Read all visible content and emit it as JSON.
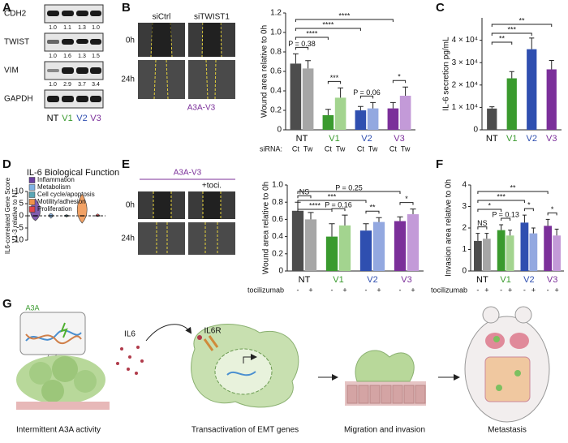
{
  "panel_labels": [
    "A",
    "B",
    "C",
    "D",
    "E",
    "F",
    "G"
  ],
  "blot": {
    "proteins": [
      "CDH2",
      "TWIST",
      "VIM",
      "GAPDH"
    ],
    "quantification": [
      [
        "1.0",
        "1.1",
        "1.3",
        "1.0"
      ],
      [
        "1.0",
        "1.6",
        "1.3",
        "1.5"
      ],
      [
        "1.0",
        "2.9",
        "3.7",
        "3.4"
      ]
    ],
    "lanes": [
      "NT",
      "V1",
      "V2",
      "V3"
    ],
    "lane_colors": [
      "#000000",
      "#3a9a2e",
      "#2f4fb0",
      "#7b2f9a"
    ]
  },
  "images_b": {
    "columns": [
      "siCtrl",
      "siTWIST1"
    ],
    "rows": [
      "0h",
      "24h"
    ],
    "caption": "A3A-V3"
  },
  "images_e": {
    "header": "A3A-V3",
    "columns_note": "+toci.",
    "rows": [
      "0h",
      "24h"
    ]
  },
  "schematic": {
    "labels": [
      "A3A",
      "IL6",
      "IL6R"
    ],
    "steps": [
      "Intermittent A3A activity",
      "Transactivation of  EMT genes",
      "Migration and invasion",
      "Metastasis"
    ]
  },
  "chart_data": [
    {
      "type": "bar",
      "ylabel": "Wound area relative to 0h",
      "categories": [
        "NT",
        "V1",
        "V2",
        "V3"
      ],
      "category_colors": [
        "#000000",
        "#3a9a2e",
        "#2f4fb0",
        "#7b2f9a"
      ],
      "subgroup_title": "siRNA:",
      "series": [
        {
          "name": "Ct",
          "colors": [
            "#4d4d4d",
            "#3a9a2e",
            "#2f4fb0",
            "#7b2f9a"
          ],
          "values": [
            0.68,
            0.15,
            0.2,
            0.22
          ],
          "errors": [
            0.1,
            0.06,
            0.04,
            0.06
          ]
        },
        {
          "name": "Tw",
          "colors": [
            "#a6a6a6",
            "#a3d48f",
            "#93a8e0",
            "#c39ad8"
          ],
          "values": [
            0.63,
            0.33,
            0.22,
            0.35
          ],
          "errors": [
            0.08,
            0.1,
            0.06,
            0.09
          ]
        }
      ],
      "ylim": [
        0,
        1.2
      ],
      "yticks": [
        0,
        0.2,
        0.4,
        0.6,
        0.8,
        {
          "value": 1,
          "label": "1.0"
        },
        1.2
      ],
      "comparisons": [
        {
          "label": "****",
          "bars": [
            [
              0,
              0
            ],
            [
              3,
              0
            ]
          ]
        },
        {
          "label": "****",
          "bars": [
            [
              0,
              0
            ],
            [
              2,
              0
            ]
          ]
        },
        {
          "label": "****",
          "bars": [
            [
              0,
              0
            ],
            [
              1,
              0
            ]
          ]
        },
        {
          "label": "P = 0.38",
          "bars": [
            [
              0,
              0
            ],
            [
              0,
              1
            ]
          ]
        },
        {
          "label": "***",
          "bars": [
            [
              1,
              0
            ],
            [
              1,
              1
            ]
          ]
        },
        {
          "label": "P = 0.06",
          "bars": [
            [
              2,
              0
            ],
            [
              2,
              1
            ]
          ]
        },
        {
          "label": "*",
          "bars": [
            [
              3,
              0
            ],
            [
              3,
              1
            ]
          ]
        }
      ]
    },
    {
      "type": "bar",
      "ylabel": "IL-6 secretion pg/mL",
      "categories": [
        "NT",
        "V1",
        "V2",
        "V3"
      ],
      "category_colors": [
        "#000000",
        "#3a9a2e",
        "#2f4fb0",
        "#7b2f9a"
      ],
      "colors": [
        "#4d4d4d",
        "#3a9a2e",
        "#2f4fb0",
        "#7b2f9a"
      ],
      "values": [
        9500,
        23000,
        36000,
        27000
      ],
      "errors": [
        800,
        3000,
        5000,
        4000
      ],
      "ylim": [
        0,
        50000
      ],
      "yticks": [
        0,
        {
          "value": 10000,
          "label": "1 × 10⁴"
        },
        {
          "value": 20000,
          "label": "2 × 10⁴"
        },
        {
          "value": 30000,
          "label": "3 × 10⁴"
        },
        {
          "value": 40000,
          "label": "4 × 10⁴"
        }
      ],
      "comparisons": [
        {
          "label": "**",
          "bars": [
            [
              0
            ],
            [
              3
            ]
          ]
        },
        {
          "label": "***",
          "bars": [
            [
              0
            ],
            [
              2
            ]
          ]
        },
        {
          "label": "**",
          "bars": [
            [
              0
            ],
            [
              1
            ]
          ]
        }
      ]
    },
    {
      "type": "violin",
      "title": "IL-6 Biological Function",
      "ylabel": [
        "IL6-correlated Gene Score",
        "V1-3 relative to NT"
      ],
      "categories": [
        "Inflammation",
        "Metabolism",
        "Cell cycle/apoptosis",
        "Motility/adhesion",
        "Proliferation"
      ],
      "colors": [
        "#6b3fa0",
        "#7fb2e5",
        "#5aa6b5",
        "#f0924a",
        "#e0454a"
      ],
      "values": [
        0,
        0,
        0,
        0,
        0
      ],
      "ranges": [
        [
          -2,
          7
        ],
        [
          -1,
          1
        ],
        [
          -0.5,
          0.5
        ],
        [
          -3,
          9
        ],
        [
          -0.3,
          0.8
        ]
      ],
      "reference_line": 0,
      "ylim": [
        -10,
        10
      ],
      "yticks": [
        -10,
        -5,
        0,
        5,
        10
      ]
    },
    {
      "type": "bar",
      "ylabel": "Wound area relative to 0h",
      "categories": [
        "NT",
        "V1",
        "V2",
        "V3"
      ],
      "category_colors": [
        "#000000",
        "#3a9a2e",
        "#2f4fb0",
        "#7b2f9a"
      ],
      "subgroup_title": "tocilizumab",
      "series": [
        {
          "name": "-",
          "colors": [
            "#4d4d4d",
            "#3a9a2e",
            "#2f4fb0",
            "#7b2f9a"
          ],
          "values": [
            0.7,
            0.4,
            0.47,
            0.58
          ],
          "errors": [
            0.1,
            0.15,
            0.08,
            0.05
          ]
        },
        {
          "name": "+",
          "colors": [
            "#a6a6a6",
            "#a3d48f",
            "#93a8e0",
            "#c39ad8"
          ],
          "values": [
            0.6,
            0.53,
            0.57,
            0.66
          ],
          "errors": [
            0.08,
            0.12,
            0.05,
            0.06
          ]
        }
      ],
      "ylim": [
        0,
        1
      ],
      "yticks": [
        0,
        0.2,
        0.4,
        0.6,
        0.8,
        {
          "value": 1,
          "label": "1.0"
        }
      ],
      "comparisons": [
        {
          "label": "P = 0.25",
          "bars": [
            [
              0,
              0
            ],
            [
              3,
              0
            ]
          ]
        },
        {
          "label": "***",
          "bars": [
            [
              0,
              0
            ],
            [
              2,
              0
            ]
          ]
        },
        {
          "label": "****",
          "bars": [
            [
              0,
              0
            ],
            [
              1,
              0
            ]
          ]
        },
        {
          "label": "NS",
          "bars": [
            [
              0,
              0
            ],
            [
              0,
              1
            ]
          ]
        },
        {
          "label": "P = 0.16",
          "bars": [
            [
              1,
              0
            ],
            [
              1,
              1
            ]
          ]
        },
        {
          "label": "**",
          "bars": [
            [
              2,
              0
            ],
            [
              2,
              1
            ]
          ]
        },
        {
          "label": "*",
          "bars": [
            [
              3,
              0
            ],
            [
              3,
              1
            ]
          ]
        }
      ]
    },
    {
      "type": "bar",
      "ylabel": "Invasion area relative to 0h",
      "categories": [
        "NT",
        "V1",
        "V2",
        "V3"
      ],
      "category_colors": [
        "#000000",
        "#3a9a2e",
        "#2f4fb0",
        "#7b2f9a"
      ],
      "subgroup_title": "tocilizumab",
      "series": [
        {
          "name": "-",
          "colors": [
            "#4d4d4d",
            "#3a9a2e",
            "#2f4fb0",
            "#7b2f9a"
          ],
          "values": [
            1.4,
            1.9,
            2.25,
            2.1
          ],
          "errors": [
            0.35,
            0.25,
            0.35,
            0.3
          ]
        },
        {
          "name": "+",
          "colors": [
            "#a6a6a6",
            "#a3d48f",
            "#93a8e0",
            "#c39ad8"
          ],
          "values": [
            1.5,
            1.65,
            1.75,
            1.65
          ],
          "errors": [
            0.25,
            0.25,
            0.25,
            0.3
          ]
        }
      ],
      "ylim": [
        0,
        4
      ],
      "yticks": [
        0,
        1,
        2,
        3,
        4
      ],
      "comparisons": [
        {
          "label": "**",
          "bars": [
            [
              0,
              0
            ],
            [
              3,
              0
            ]
          ]
        },
        {
          "label": "***",
          "bars": [
            [
              0,
              0
            ],
            [
              2,
              0
            ]
          ]
        },
        {
          "label": "*",
          "bars": [
            [
              0,
              0
            ],
            [
              1,
              0
            ]
          ]
        },
        {
          "label": "NS",
          "bars": [
            [
              0,
              0
            ],
            [
              0,
              1
            ]
          ]
        },
        {
          "label": "P = 0.13",
          "bars": [
            [
              1,
              0
            ],
            [
              1,
              1
            ]
          ]
        },
        {
          "label": "*",
          "bars": [
            [
              2,
              0
            ],
            [
              2,
              1
            ]
          ]
        },
        {
          "label": "*",
          "bars": [
            [
              3,
              0
            ],
            [
              3,
              1
            ]
          ]
        }
      ]
    }
  ]
}
